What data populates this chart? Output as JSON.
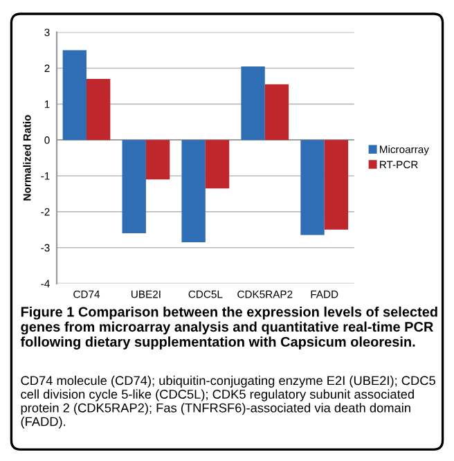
{
  "chart_data": {
    "type": "bar",
    "title": "Figure 1 Comparison between the expression levels of selected genes from microarray analysis and quantitative real-time PCR following dietary supplementation with Capsicum oleoresin.",
    "ylabel": "Normalized Ratio",
    "categories": [
      "CD74",
      "UBE2I",
      "CDC5L",
      "CDK5RAP2",
      "FADD"
    ],
    "series": [
      {
        "name": "Microarray",
        "color": "#2f6db5",
        "values": [
          2.5,
          -2.6,
          -2.85,
          2.05,
          -2.65
        ]
      },
      {
        "name": "RT-PCR",
        "color": "#c0272d",
        "values": [
          1.7,
          -1.1,
          -1.35,
          1.55,
          -2.5
        ]
      }
    ],
    "ylim": [
      -4,
      3
    ],
    "yticks": [
      -4,
      -3,
      -2,
      -1,
      0,
      1,
      2,
      3
    ],
    "grid": "y",
    "legend": "right",
    "annotations": [
      "CD74 molecule (CD74); ubiquitin-conjugating enzyme E2I (UBE2I); CDC5 cell division cycle 5-like (CDC5L); CDK5 regulatory subunit associated protein 2 (CDK5RAP2); Fas (TNFRSF6)-associated via death domain (FADD)."
    ]
  }
}
